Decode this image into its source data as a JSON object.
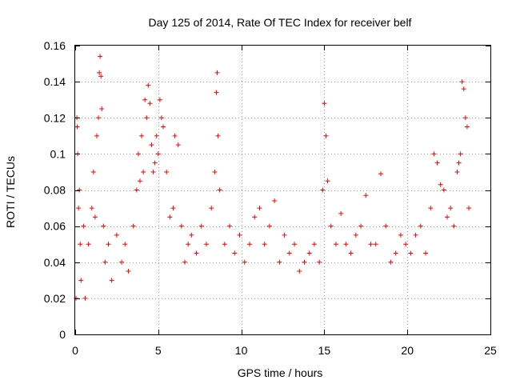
{
  "chart_data": {
    "type": "scatter",
    "title": "Day 125 of 2014, Rate Of TEC Index for receiver belf",
    "xlabel": "GPS time / hours",
    "ylabel": "ROTI / TECUs",
    "xlim": [
      0,
      25
    ],
    "ylim": [
      0,
      0.16
    ],
    "xticks": [
      0,
      5,
      10,
      15,
      20,
      25
    ],
    "xtick_labels": [
      "0",
      "5",
      "10",
      "15",
      "20",
      "25"
    ],
    "yticks": [
      0,
      0.02,
      0.04,
      0.06,
      0.08,
      0.1,
      0.12,
      0.14,
      0.16
    ],
    "ytick_labels": [
      "0",
      "0.02",
      "0.04",
      "0.06",
      "0.08",
      "0.1",
      "0.12",
      "0.14",
      "0.16"
    ],
    "grid": true,
    "marker": "plus",
    "color": "#ff0000",
    "series": [
      {
        "name": "ROTI",
        "x": [
          0.05,
          0.1,
          0.12,
          0.15,
          0.2,
          0.25,
          0.3,
          0.35,
          0.5,
          0.6,
          0.8,
          1.0,
          1.1,
          1.2,
          1.3,
          1.4,
          1.45,
          1.5,
          1.55,
          1.6,
          1.7,
          1.8,
          2.0,
          2.2,
          2.5,
          2.8,
          3.0,
          3.2,
          3.5,
          3.7,
          3.8,
          3.9,
          4.0,
          4.1,
          4.2,
          4.3,
          4.4,
          4.5,
          4.6,
          4.7,
          4.8,
          4.9,
          5.0,
          5.1,
          5.2,
          5.3,
          5.5,
          5.7,
          5.9,
          6.0,
          6.2,
          6.4,
          6.6,
          6.8,
          7.0,
          7.3,
          7.6,
          7.9,
          8.2,
          8.4,
          8.5,
          8.55,
          8.6,
          8.7,
          9.0,
          9.3,
          9.6,
          9.9,
          10.2,
          10.5,
          10.8,
          11.1,
          11.4,
          11.7,
          12.0,
          12.3,
          12.6,
          12.9,
          13.2,
          13.5,
          13.8,
          14.1,
          14.4,
          14.7,
          14.9,
          15.0,
          15.1,
          15.2,
          15.4,
          15.7,
          16.0,
          16.3,
          16.6,
          16.9,
          17.2,
          17.5,
          17.8,
          18.1,
          18.4,
          18.7,
          19.0,
          19.3,
          19.6,
          19.9,
          20.2,
          20.5,
          20.8,
          21.1,
          21.4,
          21.6,
          21.8,
          22.0,
          22.2,
          22.4,
          22.6,
          22.8,
          23.0,
          23.1,
          23.2,
          23.3,
          23.4,
          23.5,
          23.6,
          23.7
        ],
        "y": [
          0.02,
          0.12,
          0.115,
          0.1,
          0.07,
          0.08,
          0.05,
          0.03,
          0.06,
          0.02,
          0.05,
          0.07,
          0.09,
          0.065,
          0.11,
          0.12,
          0.145,
          0.154,
          0.143,
          0.125,
          0.06,
          0.04,
          0.05,
          0.03,
          0.055,
          0.04,
          0.05,
          0.035,
          0.06,
          0.08,
          0.1,
          0.085,
          0.11,
          0.09,
          0.13,
          0.12,
          0.138,
          0.128,
          0.105,
          0.09,
          0.095,
          0.11,
          0.1,
          0.13,
          0.12,
          0.115,
          0.09,
          0.065,
          0.07,
          0.11,
          0.105,
          0.06,
          0.04,
          0.05,
          0.055,
          0.045,
          0.06,
          0.05,
          0.07,
          0.09,
          0.134,
          0.145,
          0.11,
          0.08,
          0.05,
          0.06,
          0.045,
          0.055,
          0.04,
          0.05,
          0.065,
          0.07,
          0.05,
          0.06,
          0.074,
          0.04,
          0.055,
          0.045,
          0.05,
          0.035,
          0.04,
          0.045,
          0.05,
          0.04,
          0.08,
          0.128,
          0.11,
          0.085,
          0.06,
          0.05,
          0.067,
          0.05,
          0.045,
          0.055,
          0.06,
          0.077,
          0.05,
          0.05,
          0.089,
          0.06,
          0.04,
          0.045,
          0.055,
          0.05,
          0.045,
          0.055,
          0.06,
          0.045,
          0.07,
          0.1,
          0.095,
          0.083,
          0.08,
          0.065,
          0.07,
          0.06,
          0.09,
          0.095,
          0.1,
          0.14,
          0.136,
          0.12,
          0.115,
          0.07
        ]
      }
    ]
  }
}
